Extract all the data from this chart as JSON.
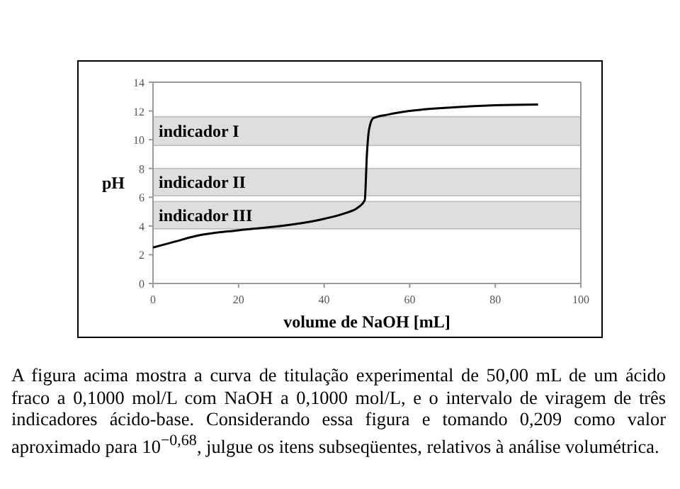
{
  "chart_data": {
    "type": "line",
    "xlabel": "volume de NaOH [mL]",
    "ylabel": "pH",
    "x": [
      0,
      5,
      10,
      20,
      30,
      40,
      45,
      48,
      49.5,
      50,
      50.5,
      51.5,
      55,
      60,
      70,
      80,
      90
    ],
    "series": [
      {
        "color": "#000000",
        "values": [
          2.5,
          2.9,
          3.3,
          3.7,
          4.0,
          4.5,
          4.9,
          5.3,
          5.8,
          9.0,
          10.7,
          11.5,
          11.75,
          12.0,
          12.25,
          12.4,
          12.45
        ]
      }
    ],
    "xlim": [
      0,
      100
    ],
    "xticks": [
      0,
      20,
      40,
      60,
      80,
      100
    ],
    "ylim": [
      0,
      14
    ],
    "yticks": [
      0,
      2,
      4,
      6,
      8,
      10,
      12,
      14
    ],
    "bands": [
      {
        "axis": "y",
        "from": 9.6,
        "to": 11.6,
        "label": "indicador I",
        "color": "#dedede"
      },
      {
        "axis": "y",
        "from": 6.1,
        "to": 8.0,
        "label": "indicador II",
        "color": "#dedede"
      },
      {
        "axis": "y",
        "from": 3.8,
        "to": 5.7,
        "label": "indicador III",
        "color": "#dedede"
      }
    ],
    "grid": false,
    "marker": "none",
    "line_style": "solid",
    "annotations": [
      "A figura acima mostra a curva de titulação experimental de 50,00 mL de um ácido fraco a 0,1000 mol/L com NaOH a 0,1000 mol/L, e o intervalo de viragem de três indicadores ácido-base. Considerando essa figura e tomando 0,209 como valor aproximado para 10$^{−0,68}$, julgue os itens subseqüentes, relativos à análise volumétrica."
    ]
  }
}
